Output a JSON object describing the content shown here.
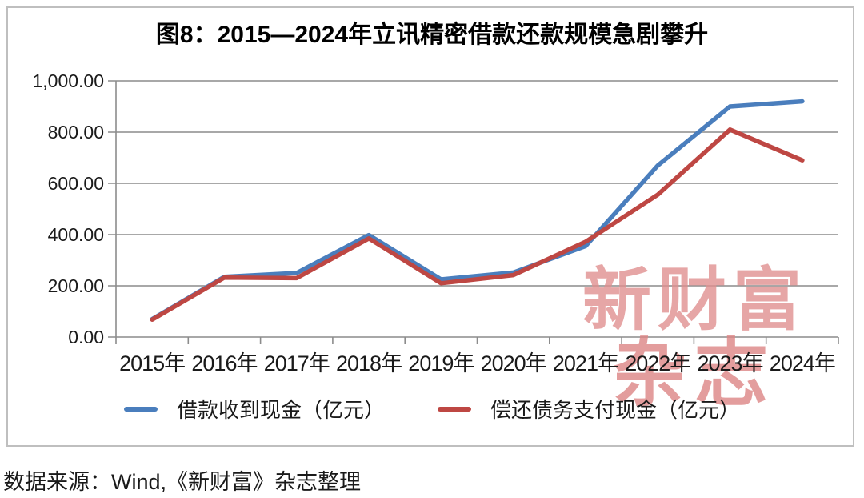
{
  "chart_data": {
    "type": "line",
    "title": "图8：2015—2024年立讯精密借款还款规模急剧攀升",
    "categories": [
      "2015年",
      "2016年",
      "2017年",
      "2018年",
      "2019年",
      "2020年",
      "2021年",
      "2022年",
      "2023年",
      "2024年"
    ],
    "series": [
      {
        "name": "借款收到现金（亿元）",
        "color": "#4a7ebd",
        "values": [
          70,
          235,
          250,
          398,
          225,
          252,
          355,
          670,
          900,
          920
        ]
      },
      {
        "name": "偿还债务支付现金（亿元）",
        "color": "#be4743",
        "values": [
          68,
          232,
          230,
          385,
          210,
          242,
          372,
          556,
          810,
          690
        ]
      }
    ],
    "xlabel": "",
    "ylabel": "",
    "ylim": [
      0,
      1000
    ],
    "y_ticks": [
      {
        "value": 0,
        "label": "0.00"
      },
      {
        "value": 200,
        "label": "200.00"
      },
      {
        "value": 400,
        "label": "400.00"
      },
      {
        "value": 600,
        "label": "600.00"
      },
      {
        "value": 800,
        "label": "800.00"
      },
      {
        "value": 1000,
        "label": "1,000.00"
      }
    ],
    "grid": "horizontal",
    "legend_position": "bottom",
    "grid_color": "#8c8c8c",
    "text_color": "#1a1a1a"
  },
  "watermark": {
    "line1": "新财富",
    "line2": "杂志"
  },
  "source": {
    "text": "数据来源：Wind,《新财富》杂志整理"
  }
}
